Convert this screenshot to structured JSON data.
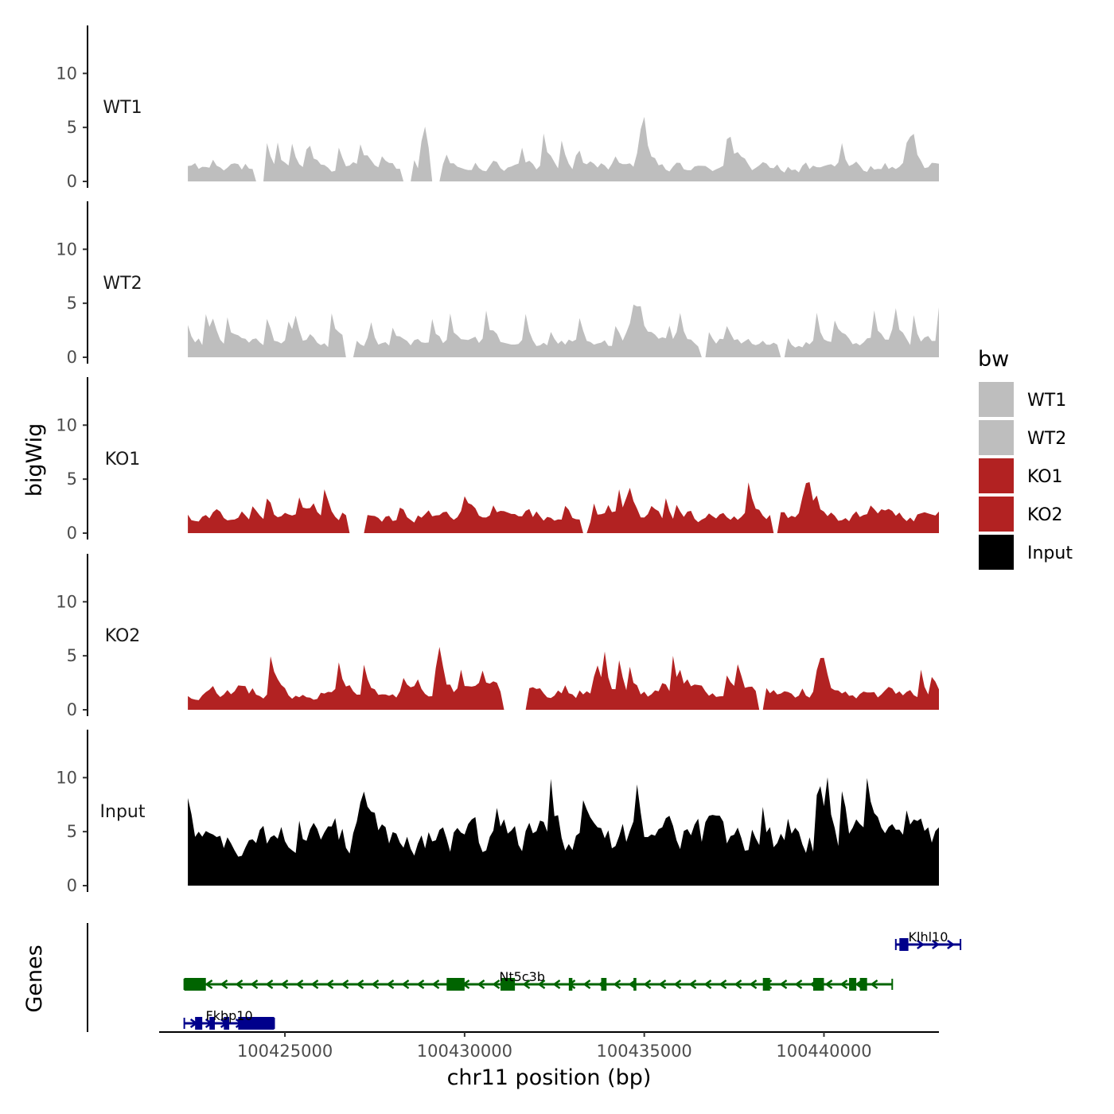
{
  "chart_data": {
    "type": "area",
    "title": "",
    "ylabel": "bigWig",
    "xlabel": "chr11 position (bp)",
    "ylim": [
      0,
      14
    ],
    "y_ticks": [
      0,
      5,
      10
    ],
    "xlim": [
      100421500,
      100443200
    ],
    "x_ticks": [
      100425000,
      100430000,
      100435000,
      100440000
    ],
    "data_start": 100422300,
    "data_end": 100443700,
    "step_bp": 100,
    "tracks": [
      {
        "name": "WT1",
        "color": "#bebebe",
        "seed": 11,
        "base": 1.5,
        "spike": 5.5,
        "gaps": [
          [
            100424200,
            100424400
          ],
          [
            100428300,
            100428500
          ],
          [
            100429100,
            100429300
          ]
        ]
      },
      {
        "name": "WT2",
        "color": "#bebebe",
        "seed": 23,
        "base": 1.5,
        "spike": 5.5,
        "gaps": [
          [
            100426700,
            100426900
          ],
          [
            100436600,
            100436700
          ],
          [
            100438800,
            100438900
          ]
        ]
      },
      {
        "name": "KO1",
        "color": "#b22222",
        "seed": 37,
        "base": 1.8,
        "spike": 5.0,
        "gaps": [
          [
            100426800,
            100427200
          ],
          [
            100433300,
            100433400
          ],
          [
            100438600,
            100438700
          ]
        ]
      },
      {
        "name": "KO2",
        "color": "#b22222",
        "seed": 53,
        "base": 1.8,
        "spike": 6.0,
        "gaps": [
          [
            100431100,
            100431700
          ],
          [
            100438200,
            100438300
          ]
        ]
      },
      {
        "name": "Input",
        "color": "#000000",
        "seed": 71,
        "base": 5.0,
        "spike": 8.0,
        "gaps": []
      }
    ],
    "genes": [
      {
        "name": "Fkbp10",
        "strand": "+",
        "start": 100422200,
        "end": 100424700,
        "color": "#00008b",
        "row": 2,
        "exons": [
          [
            100422500,
            100422700
          ],
          [
            100422900,
            100423050
          ],
          [
            100423300,
            100423450
          ],
          [
            100423700,
            100424700
          ]
        ]
      },
      {
        "name": "Nt5c3b",
        "strand": "-",
        "start": 100422200,
        "end": 100441900,
        "color": "#006400",
        "row": 1,
        "exons": [
          [
            100422200,
            100422800
          ],
          [
            100429500,
            100430000
          ],
          [
            100431000,
            100431400
          ],
          [
            100432900,
            100433000
          ],
          [
            100433800,
            100433950
          ],
          [
            100434700,
            100434780
          ],
          [
            100438300,
            100438500
          ],
          [
            100439700,
            100440000
          ],
          [
            100440700,
            100440900
          ],
          [
            100441000,
            100441200
          ]
        ]
      },
      {
        "name": "Klhl10",
        "strand": "+",
        "start": 100442000,
        "end": 100443800,
        "color": "#00008b",
        "row": 0,
        "exons": [
          [
            100442100,
            100442350
          ]
        ]
      }
    ],
    "legend": {
      "title": "bw",
      "entries": [
        {
          "label": "WT1",
          "color": "#bebebe"
        },
        {
          "label": "WT2",
          "color": "#bebebe"
        },
        {
          "label": "KO1",
          "color": "#b22222"
        },
        {
          "label": "KO2",
          "color": "#b22222"
        },
        {
          "label": "Input",
          "color": "#000000"
        }
      ]
    },
    "genes_label": "Genes"
  }
}
